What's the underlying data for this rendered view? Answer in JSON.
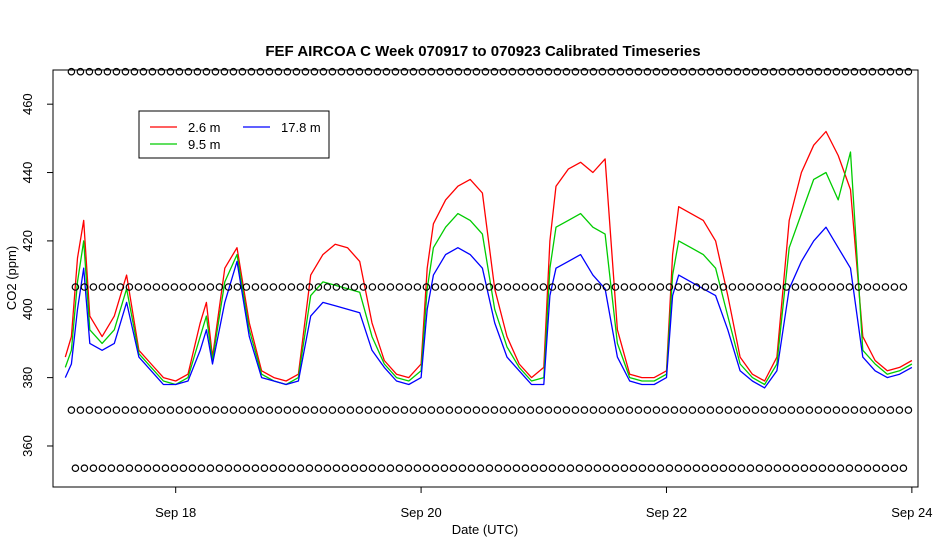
{
  "chart_data": {
    "type": "line",
    "title": "FEF AIRCOA C  Week 070917 to 070923  Calibrated Timeseries",
    "xlabel": "Date (UTC)",
    "ylabel": "CO2 (ppm)",
    "x_unit": "day of September 2007",
    "xlim": [
      17.0,
      24.05
    ],
    "ylim": [
      348,
      470
    ],
    "x_ticks": [
      {
        "value": 18,
        "label": "Sep 18"
      },
      {
        "value": 20,
        "label": "Sep 20"
      },
      {
        "value": 22,
        "label": "Sep 22"
      },
      {
        "value": 24,
        "label": "Sep 24"
      }
    ],
    "y_ticks": [
      360,
      380,
      400,
      420,
      440,
      460
    ],
    "grid": false,
    "legend": {
      "placement": "top-left",
      "entries": [
        {
          "label": "2.6 m",
          "color": "#ff0000"
        },
        {
          "label": "9.5 m",
          "color": "#00cc00"
        },
        {
          "label": "17.8 m",
          "color": "#0000ff"
        }
      ]
    },
    "calibration_marker_levels": [
      469.5,
      406.5,
      370.5,
      353.5
    ],
    "calibration_marker_style": "open circle",
    "series": [
      {
        "name": "2.6 m",
        "color": "#ff0000",
        "x": [
          17.1,
          17.15,
          17.2,
          17.25,
          17.3,
          17.4,
          17.5,
          17.6,
          17.7,
          17.8,
          17.9,
          18.0,
          18.1,
          18.2,
          18.25,
          18.3,
          18.4,
          18.5,
          18.6,
          18.7,
          18.8,
          18.9,
          19.0,
          19.1,
          19.2,
          19.3,
          19.4,
          19.5,
          19.6,
          19.7,
          19.8,
          19.9,
          20.0,
          20.05,
          20.1,
          20.2,
          20.3,
          20.4,
          20.5,
          20.6,
          20.7,
          20.8,
          20.9,
          21.0,
          21.05,
          21.1,
          21.2,
          21.3,
          21.4,
          21.5,
          21.6,
          21.7,
          21.8,
          21.9,
          22.0,
          22.05,
          22.1,
          22.2,
          22.3,
          22.4,
          22.5,
          22.6,
          22.7,
          22.8,
          22.9,
          23.0,
          23.1,
          23.2,
          23.3,
          23.4,
          23.5,
          23.6,
          23.7,
          23.8,
          23.9,
          24.0
        ],
        "y": [
          386,
          392,
          415,
          426,
          398,
          392,
          398,
          410,
          388,
          384,
          380,
          379,
          381,
          396,
          402,
          386,
          412,
          418,
          396,
          382,
          380,
          379,
          381,
          410,
          416,
          419,
          418,
          414,
          396,
          385,
          381,
          380,
          384,
          412,
          425,
          432,
          436,
          438,
          434,
          406,
          392,
          384,
          380,
          383,
          420,
          436,
          441,
          443,
          440,
          444,
          394,
          381,
          380,
          380,
          382,
          416,
          430,
          428,
          426,
          420,
          404,
          386,
          381,
          379,
          386,
          426,
          440,
          448,
          452,
          445,
          435,
          392,
          385,
          382,
          383,
          385
        ]
      },
      {
        "name": "9.5 m",
        "color": "#00cc00",
        "x": [
          17.1,
          17.15,
          17.2,
          17.25,
          17.3,
          17.4,
          17.5,
          17.6,
          17.7,
          17.8,
          17.9,
          18.0,
          18.1,
          18.2,
          18.25,
          18.3,
          18.4,
          18.5,
          18.6,
          18.7,
          18.8,
          18.9,
          19.0,
          19.1,
          19.2,
          19.3,
          19.4,
          19.5,
          19.6,
          19.7,
          19.8,
          19.9,
          20.0,
          20.05,
          20.1,
          20.2,
          20.3,
          20.4,
          20.5,
          20.6,
          20.7,
          20.8,
          20.9,
          21.0,
          21.05,
          21.1,
          21.2,
          21.3,
          21.4,
          21.5,
          21.6,
          21.7,
          21.8,
          21.9,
          22.0,
          22.05,
          22.1,
          22.2,
          22.3,
          22.4,
          22.5,
          22.6,
          22.7,
          22.8,
          22.9,
          23.0,
          23.1,
          23.2,
          23.3,
          23.4,
          23.5,
          23.6,
          23.7,
          23.8,
          23.9,
          24.0
        ],
        "y": [
          383,
          388,
          408,
          420,
          394,
          390,
          394,
          406,
          387,
          383,
          379,
          378,
          380,
          392,
          398,
          385,
          408,
          416,
          394,
          381,
          379,
          378,
          380,
          404,
          408,
          407,
          406,
          405,
          392,
          384,
          380,
          379,
          382,
          406,
          418,
          424,
          428,
          426,
          422,
          400,
          389,
          383,
          379,
          380,
          412,
          424,
          426,
          428,
          424,
          422,
          390,
          380,
          379,
          379,
          381,
          410,
          420,
          418,
          416,
          412,
          398,
          384,
          380,
          378,
          384,
          418,
          428,
          438,
          440,
          432,
          446,
          388,
          384,
          381,
          382,
          384
        ]
      },
      {
        "name": "17.8 m",
        "color": "#0000ff",
        "x": [
          17.1,
          17.15,
          17.2,
          17.25,
          17.3,
          17.4,
          17.5,
          17.6,
          17.7,
          17.8,
          17.9,
          18.0,
          18.1,
          18.2,
          18.25,
          18.3,
          18.4,
          18.5,
          18.6,
          18.7,
          18.8,
          18.9,
          19.0,
          19.1,
          19.2,
          19.3,
          19.4,
          19.5,
          19.6,
          19.7,
          19.8,
          19.9,
          20.0,
          20.05,
          20.1,
          20.2,
          20.3,
          20.4,
          20.5,
          20.6,
          20.7,
          20.8,
          20.9,
          21.0,
          21.05,
          21.1,
          21.2,
          21.3,
          21.4,
          21.5,
          21.6,
          21.7,
          21.8,
          21.9,
          22.0,
          22.05,
          22.1,
          22.2,
          22.3,
          22.4,
          22.5,
          22.6,
          22.7,
          22.8,
          22.9,
          23.0,
          23.1,
          23.2,
          23.3,
          23.4,
          23.5,
          23.6,
          23.7,
          23.8,
          23.9,
          24.0
        ],
        "y": [
          380,
          384,
          400,
          412,
          390,
          388,
          390,
          402,
          386,
          382,
          378,
          378,
          379,
          388,
          394,
          384,
          402,
          414,
          392,
          380,
          379,
          378,
          379,
          398,
          402,
          401,
          400,
          399,
          388,
          383,
          379,
          378,
          380,
          400,
          410,
          416,
          418,
          416,
          412,
          396,
          386,
          382,
          378,
          378,
          404,
          412,
          414,
          416,
          410,
          406,
          386,
          379,
          378,
          378,
          380,
          404,
          410,
          408,
          406,
          404,
          394,
          382,
          379,
          377,
          382,
          406,
          414,
          420,
          424,
          418,
          412,
          386,
          382,
          380,
          381,
          383
        ]
      }
    ]
  }
}
